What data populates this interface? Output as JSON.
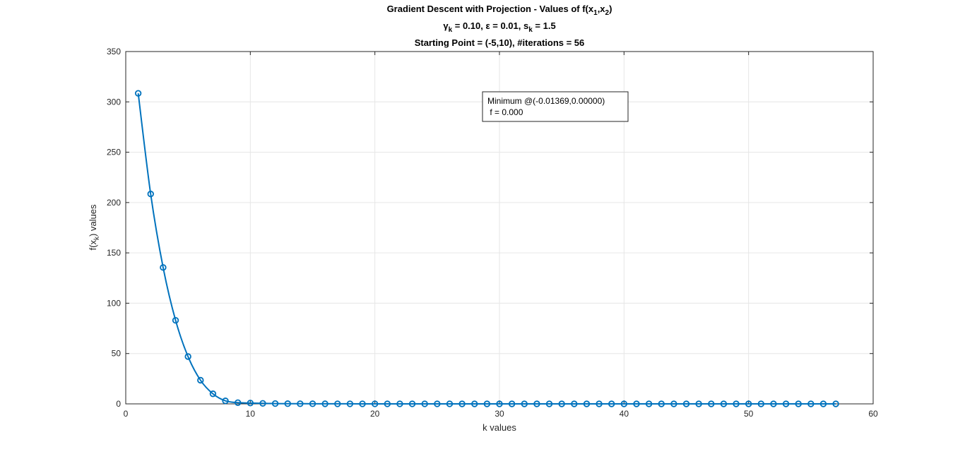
{
  "chart_data": {
    "type": "line",
    "title_lines": [
      "Gradient Descent with Projection - Values of f(x1,x2)",
      "γk = 0.10, ε = 0.01, sk = 1.5",
      "Starting Point = (-5,10),  #iterations = 56"
    ],
    "title_parts": {
      "t1_a": "Gradient Descent with Projection - Values of f(x",
      "t1_s1": "1",
      "t1_b": ",x",
      "t1_s2": "2",
      "t1_c": ")",
      "t2_a": "γ",
      "t2_s1": "k",
      "t2_b": " = 0.10, ε = 0.01, s",
      "t2_s2": "k",
      "t2_c": " = 1.5",
      "t3": "Starting Point = (-5,10),  #iterations = 56"
    },
    "xlabel": "k values",
    "ylabel_parts": {
      "a": "f(x",
      "sub": "k",
      "b": ") values"
    },
    "xlim": [
      0,
      60
    ],
    "ylim": [
      0,
      350
    ],
    "xticks": [
      0,
      10,
      20,
      30,
      40,
      50,
      60
    ],
    "yticks": [
      0,
      50,
      100,
      150,
      200,
      250,
      300,
      350
    ],
    "grid": true,
    "line_color": "#0072BD",
    "marker": "circle",
    "series": [
      {
        "x": [
          1,
          2,
          3,
          4,
          5,
          6,
          7,
          8,
          9,
          10,
          11,
          12,
          13,
          14,
          15,
          16,
          17,
          18,
          19,
          20,
          21,
          22,
          23,
          24,
          25,
          26,
          27,
          28,
          29,
          30,
          31,
          32,
          33,
          34,
          35,
          36,
          37,
          38,
          39,
          40,
          41,
          42,
          43,
          44,
          45,
          46,
          47,
          48,
          49,
          50,
          51,
          52,
          53,
          54,
          55,
          56,
          57
        ],
        "y": [
          308.5,
          208.5,
          135.5,
          83,
          47,
          23.5,
          10,
          3,
          1.2,
          0.8,
          0.5,
          0.3,
          0.2,
          0.15,
          0.1,
          0.08,
          0.06,
          0.05,
          0.04,
          0.03,
          0.02,
          0.02,
          0.015,
          0.01,
          0.01,
          0.01,
          0.005,
          0.005,
          0.005,
          0.004,
          0.003,
          0.003,
          0.002,
          0.002,
          0.002,
          0.001,
          0.001,
          0.001,
          0.001,
          0.001,
          0.001,
          0.001,
          0,
          0,
          0,
          0,
          0,
          0,
          0,
          0,
          0,
          0,
          0,
          0,
          0,
          0,
          0
        ]
      }
    ],
    "annotation": {
      "line1": "Minimum @(-0.01369,0.00000)",
      "line2": " f = 0.000"
    }
  }
}
